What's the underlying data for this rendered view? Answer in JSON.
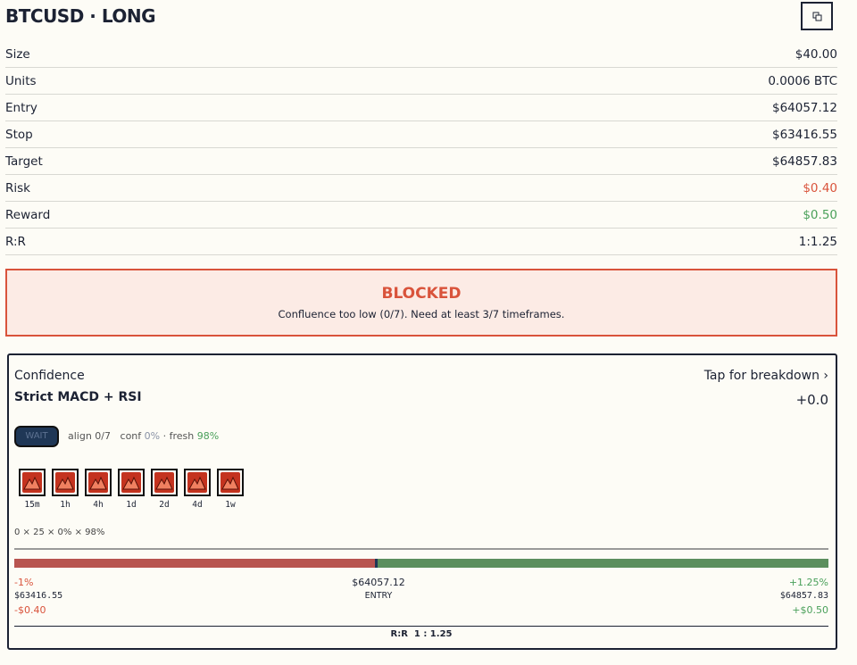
{
  "header": {
    "title": "BTCUSD · LONG"
  },
  "rows": [
    {
      "label": "Size",
      "value": "$40.00"
    },
    {
      "label": "Units",
      "value": "0.0006 BTC"
    },
    {
      "label": "Entry",
      "value": "$64057.12"
    },
    {
      "label": "Stop",
      "value": "$63416.55"
    },
    {
      "label": "Target",
      "value": "$64857.83"
    },
    {
      "label": "Risk",
      "value": "$0.40"
    },
    {
      "label": "Reward",
      "value": "$0.50"
    },
    {
      "label": "R:R",
      "value": "1:1.25"
    }
  ],
  "alert": {
    "title": "BLOCKED",
    "message": "Confluence too low (0/7). Need at least 3/7 timeframes."
  },
  "card": {
    "heading": "Confidence",
    "link": "Tap for breakdown ›",
    "strategy": "Strict MACD + RSI",
    "score": "+0.0",
    "badge": "WAIT",
    "align": "align 0/7",
    "conf_label": "conf",
    "conf_value": "0%",
    "fresh_label": "· fresh",
    "fresh_value": "98%",
    "timeframes": [
      "15m",
      "1h",
      "4h",
      "1d",
      "2d",
      "4d",
      "1w"
    ],
    "formula": "0 × 25 × 0% × 98%",
    "left": {
      "pct": "-1%",
      "price": "$63416.55",
      "amount": "-$0.40"
    },
    "center": {
      "price": "$64057.12",
      "label": "ENTRY"
    },
    "right": {
      "pct": "+1.25%",
      "price": "$64857.83",
      "amount": "+$0.50"
    },
    "rr_label": "R:R",
    "rr_value": "1 : 1.25"
  }
}
